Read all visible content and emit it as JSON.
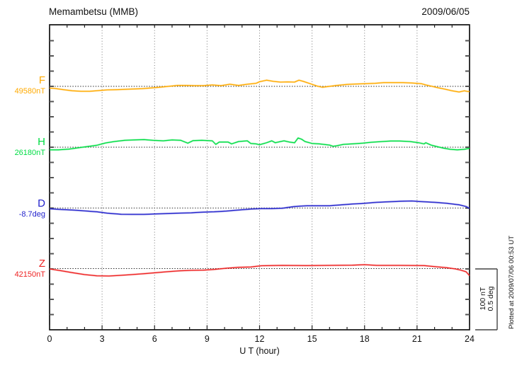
{
  "header": {
    "title": "Memambetsu (MMB)",
    "date": "2009/06/05"
  },
  "x_axis": {
    "label": "U T (hour)"
  },
  "scale_bar": {
    "line1": "100 nT",
    "line2": "0.5 deg"
  },
  "footer_note": "Plotted at 2009/07/06 00:53 UT",
  "chart_data": {
    "type": "line",
    "title": "Memambetsu (MMB) magnetogram",
    "date": "2009/06/05",
    "xlabel": "U T (hour)",
    "x_range": [
      0,
      24
    ],
    "x_ticks": [
      0,
      3,
      6,
      9,
      12,
      15,
      18,
      21,
      24
    ],
    "x_minor_step": 1,
    "grid": "dotted vertical at every 3 h, dotted horizontal baseline per channel",
    "scale": {
      "nT_per_division": 100,
      "deg_per_division": 0.5
    },
    "series": [
      {
        "id": "F",
        "label": "F",
        "baseline_label": "49580nT",
        "unit": "nT",
        "color": "#FFAA00",
        "points": [
          [
            0,
            -2.9
          ],
          [
            0.3,
            -3.5
          ],
          [
            0.8,
            -5.5
          ],
          [
            1.3,
            -7.3
          ],
          [
            1.8,
            -8.1
          ],
          [
            2.3,
            -8.1
          ],
          [
            2.8,
            -7
          ],
          [
            3.3,
            -5.8
          ],
          [
            3.8,
            -5.5
          ],
          [
            4.3,
            -5
          ],
          [
            4.8,
            -4.3
          ],
          [
            5.3,
            -3.8
          ],
          [
            5.8,
            -2.7
          ],
          [
            6.3,
            -1.5
          ],
          [
            6.8,
            0
          ],
          [
            7.3,
            1.5
          ],
          [
            7.8,
            1.5
          ],
          [
            8.3,
            1.2
          ],
          [
            8.8,
            1.2
          ],
          [
            9.3,
            2.3
          ],
          [
            9.8,
            1.2
          ],
          [
            10.3,
            3.5
          ],
          [
            10.8,
            1.5
          ],
          [
            11.3,
            3.5
          ],
          [
            11.8,
            5
          ],
          [
            12,
            7.6
          ],
          [
            12.4,
            10.1
          ],
          [
            12.8,
            8.1
          ],
          [
            13.2,
            7
          ],
          [
            13.6,
            7.3
          ],
          [
            14,
            7
          ],
          [
            14.25,
            10.1
          ],
          [
            14.5,
            8.1
          ],
          [
            14.9,
            4.3
          ],
          [
            15.3,
            0.3
          ],
          [
            15.6,
            -1.5
          ],
          [
            16,
            0
          ],
          [
            16.4,
            1.5
          ],
          [
            17,
            3.1
          ],
          [
            17.5,
            3.8
          ],
          [
            18,
            4.3
          ],
          [
            18.6,
            5
          ],
          [
            19.1,
            6.2
          ],
          [
            19.6,
            6.2
          ],
          [
            20.2,
            6.2
          ],
          [
            20.7,
            5.5
          ],
          [
            21.25,
            4.3
          ],
          [
            21.5,
            2.3
          ],
          [
            21.8,
            0.3
          ],
          [
            22.2,
            -2.3
          ],
          [
            22.6,
            -4.7
          ],
          [
            23,
            -7.3
          ],
          [
            23.4,
            -9.3
          ],
          [
            23.7,
            -7.3
          ],
          [
            23.9,
            -8.5
          ],
          [
            24,
            -8.5
          ]
        ]
      },
      {
        "id": "H",
        "label": "H",
        "baseline_label": "26180nT",
        "unit": "nT",
        "color": "#00DD44",
        "points": [
          [
            0,
            -4.3
          ],
          [
            0.5,
            -4.3
          ],
          [
            1.1,
            -3.1
          ],
          [
            1.6,
            -1.2
          ],
          [
            2.1,
            0.8
          ],
          [
            2.7,
            3.1
          ],
          [
            3.2,
            7
          ],
          [
            3.7,
            9.3
          ],
          [
            4.3,
            11.3
          ],
          [
            4.8,
            12
          ],
          [
            5.4,
            12.4
          ],
          [
            5.9,
            11.3
          ],
          [
            6.5,
            10.5
          ],
          [
            7,
            12
          ],
          [
            7.5,
            11.3
          ],
          [
            7.9,
            6.6
          ],
          [
            8.2,
            10.8
          ],
          [
            8.7,
            11.3
          ],
          [
            9.3,
            10.5
          ],
          [
            9.5,
            4.7
          ],
          [
            9.7,
            8.5
          ],
          [
            10.2,
            8.5
          ],
          [
            10.4,
            5.5
          ],
          [
            10.8,
            9.3
          ],
          [
            11.3,
            10.5
          ],
          [
            11.5,
            6.2
          ],
          [
            11.8,
            5.5
          ],
          [
            12,
            4.1
          ],
          [
            12.4,
            7.3
          ],
          [
            12.7,
            10.5
          ],
          [
            12.9,
            7.3
          ],
          [
            13.2,
            9.3
          ],
          [
            13.4,
            10.5
          ],
          [
            13.7,
            8.5
          ],
          [
            14,
            7.3
          ],
          [
            14.2,
            15.1
          ],
          [
            14.4,
            13.1
          ],
          [
            14.6,
            9.3
          ],
          [
            15,
            6.2
          ],
          [
            15.4,
            5.5
          ],
          [
            16,
            3.5
          ],
          [
            16.2,
            1.5
          ],
          [
            16.4,
            2.3
          ],
          [
            16.8,
            4.7
          ],
          [
            17.3,
            5.5
          ],
          [
            17.9,
            6.6
          ],
          [
            18.4,
            8.1
          ],
          [
            19,
            9.3
          ],
          [
            19.5,
            10.1
          ],
          [
            20,
            10.1
          ],
          [
            20.6,
            9.3
          ],
          [
            21.1,
            7.3
          ],
          [
            21.4,
            5.5
          ],
          [
            21.5,
            7.3
          ],
          [
            21.8,
            3.5
          ],
          [
            22.2,
            0.6
          ],
          [
            22.5,
            -1.5
          ],
          [
            22.9,
            -3.5
          ],
          [
            23.3,
            -4.3
          ],
          [
            23.7,
            -3.5
          ],
          [
            24,
            -1.7
          ]
        ]
      },
      {
        "id": "D",
        "label": "D",
        "baseline_label": "-8.7deg",
        "unit": "deg",
        "color": "#2222CC",
        "points": [
          [
            0,
            -0.006
          ],
          [
            0.7,
            -0.012
          ],
          [
            1.3,
            -0.016
          ],
          [
            2,
            -0.023
          ],
          [
            2.7,
            -0.031
          ],
          [
            3.3,
            -0.042
          ],
          [
            4.1,
            -0.051
          ],
          [
            4.7,
            -0.052
          ],
          [
            5.4,
            -0.052
          ],
          [
            6.1,
            -0.048
          ],
          [
            6.7,
            -0.045
          ],
          [
            7.4,
            -0.042
          ],
          [
            8.1,
            -0.039
          ],
          [
            8.8,
            -0.033
          ],
          [
            9.4,
            -0.031
          ],
          [
            10.1,
            -0.025
          ],
          [
            10.8,
            -0.016
          ],
          [
            11.5,
            -0.008
          ],
          [
            12.1,
            -0.004
          ],
          [
            12.7,
            -0.004
          ],
          [
            13.3,
            -0.002
          ],
          [
            14,
            0.013
          ],
          [
            14.7,
            0.019
          ],
          [
            15.4,
            0.019
          ],
          [
            16,
            0.019
          ],
          [
            16.7,
            0.027
          ],
          [
            17.3,
            0.033
          ],
          [
            18,
            0.039
          ],
          [
            18.7,
            0.047
          ],
          [
            19.4,
            0.052
          ],
          [
            20,
            0.056
          ],
          [
            20.7,
            0.058
          ],
          [
            21.4,
            0.052
          ],
          [
            22,
            0.047
          ],
          [
            22.7,
            0.039
          ],
          [
            23.4,
            0.027
          ],
          [
            23.8,
            0.013
          ],
          [
            24,
            -0.003
          ]
        ]
      },
      {
        "id": "Z",
        "label": "Z",
        "baseline_label": "42150nT",
        "unit": "nT",
        "color": "#EE2222",
        "points": [
          [
            0,
            -0.6
          ],
          [
            0.7,
            -3.7
          ],
          [
            1.3,
            -6.7
          ],
          [
            2,
            -9.9
          ],
          [
            2.7,
            -11.9
          ],
          [
            3.4,
            -12.2
          ],
          [
            4.1,
            -11
          ],
          [
            4.7,
            -9.9
          ],
          [
            5.4,
            -8.4
          ],
          [
            6.1,
            -6.7
          ],
          [
            6.7,
            -5.2
          ],
          [
            7.4,
            -3.7
          ],
          [
            8.1,
            -2.9
          ],
          [
            8.8,
            -2.6
          ],
          [
            9.4,
            -1.4
          ],
          [
            10.1,
            0.6
          ],
          [
            10.8,
            2.1
          ],
          [
            11.5,
            2.6
          ],
          [
            12.1,
            4.7
          ],
          [
            13.3,
            5.2
          ],
          [
            14.7,
            4.9
          ],
          [
            16,
            5.2
          ],
          [
            17.3,
            5.6
          ],
          [
            18,
            6.4
          ],
          [
            18.7,
            5.2
          ],
          [
            20,
            5.2
          ],
          [
            21.4,
            4.9
          ],
          [
            22,
            3.3
          ],
          [
            22.7,
            1.4
          ],
          [
            23.2,
            -0.6
          ],
          [
            23.5,
            -2.6
          ],
          [
            23.8,
            -5.2
          ],
          [
            24,
            -11.6
          ]
        ]
      }
    ]
  }
}
